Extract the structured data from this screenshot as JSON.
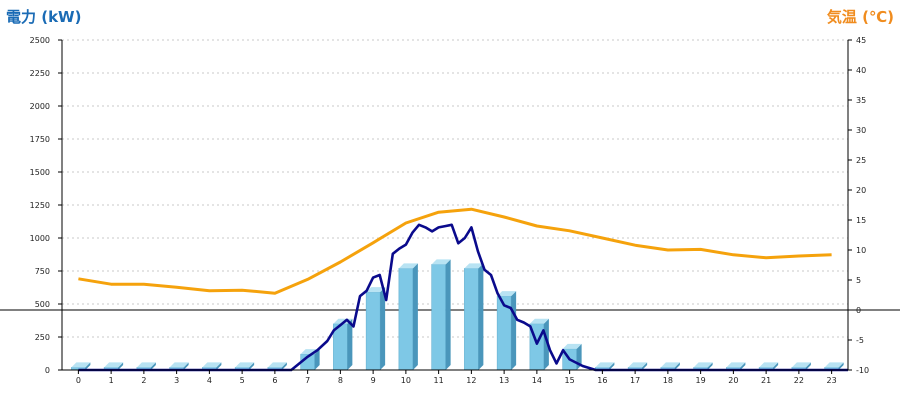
{
  "chart_data": {
    "type": "bar",
    "title": "",
    "left_axis": {
      "label": "電力 (kW)",
      "ylim": [
        0,
        2500
      ],
      "ticks": [
        0,
        250,
        500,
        750,
        1000,
        1250,
        1500,
        1750,
        2000,
        2250,
        2500
      ]
    },
    "right_axis": {
      "label": "気温 (℃)",
      "ylim": [
        -10,
        45
      ],
      "ticks": [
        -10,
        -5,
        0,
        5,
        10,
        15,
        20,
        25,
        30,
        35,
        40,
        45
      ]
    },
    "categories": [
      "0",
      "1",
      "2",
      "3",
      "4",
      "5",
      "6",
      "7",
      "8",
      "9",
      "10",
      "11",
      "12",
      "13",
      "14",
      "15",
      "16",
      "17",
      "18",
      "19",
      "20",
      "21",
      "22",
      "23"
    ],
    "grid": true,
    "series": [
      {
        "kind": "bar3d",
        "axis": "left",
        "values": [
          20,
          20,
          20,
          20,
          20,
          20,
          20,
          120,
          350,
          590,
          770,
          800,
          770,
          560,
          350,
          160,
          20,
          20,
          20,
          20,
          20,
          20,
          20,
          20
        ]
      },
      {
        "kind": "line",
        "axis": "left",
        "color": "#0a0a8c",
        "x": [
          0,
          6,
          6.5,
          7,
          7.3,
          7.6,
          7.8,
          8,
          8.2,
          8.4,
          8.6,
          8.8,
          9,
          9.2,
          9.4,
          9.6,
          9.8,
          10,
          10.2,
          10.4,
          10.6,
          10.8,
          11,
          11.2,
          11.4,
          11.6,
          11.8,
          12,
          12.2,
          12.4,
          12.6,
          12.8,
          13,
          13.2,
          13.4,
          13.6,
          13.8,
          14,
          14.2,
          14.4,
          14.6,
          14.8,
          15,
          15.4,
          15.8,
          16,
          23.5
        ],
        "values": [
          0,
          0,
          0,
          100,
          150,
          220,
          300,
          340,
          380,
          330,
          560,
          600,
          700,
          720,
          530,
          880,
          920,
          950,
          1040,
          1100,
          1080,
          1050,
          1080,
          1090,
          1100,
          960,
          1000,
          1080,
          900,
          760,
          720,
          580,
          490,
          470,
          380,
          360,
          330,
          200,
          300,
          150,
          50,
          150,
          80,
          30,
          0,
          0,
          0
        ]
      },
      {
        "kind": "line",
        "axis": "right",
        "color": "#f5a20c",
        "x": [
          0,
          1,
          2,
          3,
          4,
          5,
          6,
          7,
          8,
          9,
          10,
          11,
          12,
          13,
          14,
          15,
          16,
          17,
          18,
          19,
          20,
          21,
          22,
          23
        ],
        "values": [
          5.2,
          4.3,
          4.3,
          3.8,
          3.2,
          3.3,
          2.8,
          5.1,
          8.0,
          11.2,
          14.5,
          16.3,
          16.8,
          15.5,
          14.0,
          13.2,
          12.0,
          10.8,
          10.0,
          10.1,
          9.2,
          8.7,
          9.0,
          9.2
        ]
      }
    ]
  }
}
